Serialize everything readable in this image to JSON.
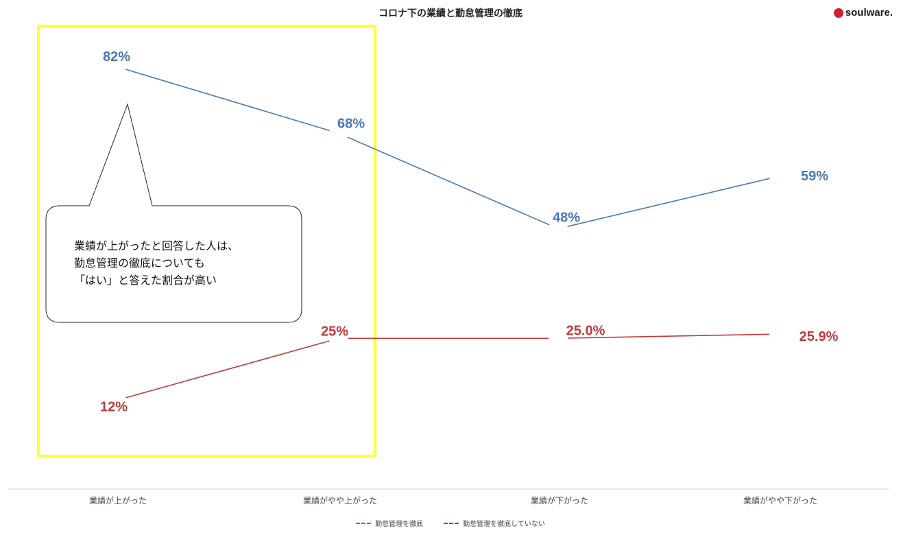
{
  "title": "コロナ下の業績と勤怠管理の徹底",
  "logo": {
    "text": "soulware.",
    "accent_color": "#d0202a"
  },
  "callout": {
    "lines": [
      "業績が上がったと回答した人は、",
      "勤怠管理の徹底についても",
      "「はい」と答えた割合が高い"
    ],
    "highlight_color": "#ffff33"
  },
  "chart_data": {
    "type": "line",
    "categories": [
      "業績が上がった",
      "業績がやや上がった",
      "業績が下がった",
      "業績がやや下がった"
    ],
    "series": [
      {
        "name": "勤怠管理を徹底",
        "color": "#4a78b5",
        "values": [
          82,
          68,
          48,
          59
        ],
        "labels": [
          "82%",
          "68%",
          "48%",
          "59%"
        ]
      },
      {
        "name": "勤怠管理を徹底していない",
        "color": "#c0393b",
        "values": [
          12,
          25,
          25.0,
          25.9
        ],
        "labels": [
          "12%",
          "25%",
          "25.0%",
          "25.9%"
        ]
      }
    ],
    "ylim": [
      0,
      100
    ],
    "grid": false,
    "legend_position": "bottom"
  }
}
